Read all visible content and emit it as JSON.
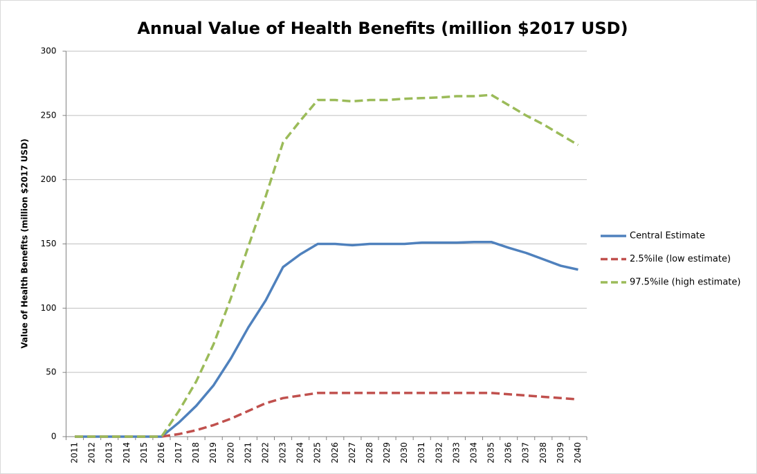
{
  "chart_data": {
    "type": "line",
    "title": "Annual Value of Health Benefits (million $2017 USD)",
    "y_label": "Value of Health Benefits (million $2017 USD)",
    "categories": [
      "2011",
      "2012",
      "2013",
      "2014",
      "2015",
      "2016",
      "2017",
      "2018",
      "2019",
      "2020",
      "2021",
      "2022",
      "2023",
      "2024",
      "2025",
      "2026",
      "2027",
      "2028",
      "2029",
      "2030",
      "2031",
      "2032",
      "2033",
      "2034",
      "2035",
      "2036",
      "2037",
      "2038",
      "2039",
      "2040"
    ],
    "series": [
      {
        "name": "Central Estimate",
        "color": "#4f81bd",
        "dashed": false,
        "values": [
          0,
          0,
          0,
          0,
          0,
          0,
          11,
          24,
          40,
          61,
          85,
          106,
          132,
          142,
          150,
          150,
          149,
          150,
          150,
          150,
          151,
          151,
          151,
          151.5,
          151.5,
          147,
          143,
          138,
          133,
          130
        ]
      },
      {
        "name": "2.5%ile (low estimate)",
        "color": "#c0504d",
        "dashed": true,
        "values": [
          0,
          0,
          0,
          0,
          0,
          0,
          2,
          5,
          9,
          14,
          20,
          26,
          30,
          32,
          34,
          34,
          34,
          34,
          34,
          34,
          34,
          34,
          34,
          34,
          34,
          33,
          32,
          31,
          30,
          29
        ]
      },
      {
        "name": "97.5%ile (high estimate)",
        "color": "#9bbb59",
        "dashed": true,
        "values": [
          0,
          0,
          0,
          0,
          0,
          0,
          20,
          43,
          72,
          108,
          148,
          187,
          229,
          246,
          262,
          262,
          261,
          262,
          262,
          263,
          263.5,
          264,
          265,
          265,
          266,
          258,
          250,
          243,
          235,
          227
        ]
      }
    ],
    "ylim": [
      0,
      300
    ],
    "yticks": [
      0,
      50,
      100,
      150,
      200,
      250,
      300
    ],
    "grid": true,
    "legend": "right"
  }
}
